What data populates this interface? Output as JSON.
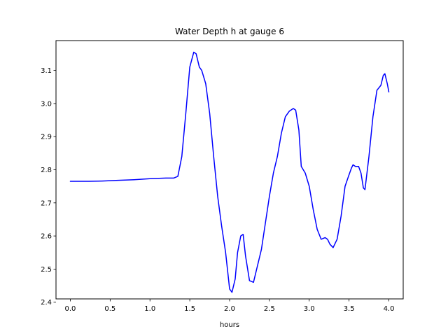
{
  "chart_data": {
    "type": "line",
    "title": "Water Depth h at gauge 6",
    "xlabel": "hours",
    "ylabel": "",
    "xlim": [
      -0.18,
      4.18
    ],
    "ylim": [
      2.41,
      3.19
    ],
    "xticks": [
      0.0,
      0.5,
      1.0,
      1.5,
      2.0,
      2.5,
      3.0,
      3.5,
      4.0
    ],
    "xtick_labels": [
      "0.0",
      "0.5",
      "1.0",
      "1.5",
      "2.0",
      "2.5",
      "3.0",
      "3.5",
      "4.0"
    ],
    "yticks": [
      2.4,
      2.5,
      2.6,
      2.7,
      2.8,
      2.9,
      3.0,
      3.1
    ],
    "ytick_labels": [
      "2.4",
      "2.5",
      "2.6",
      "2.7",
      "2.8",
      "2.9",
      "3.0",
      "3.1"
    ],
    "grid": false,
    "series": [
      {
        "color": "#0000ff",
        "x": [
          0.0,
          0.2,
          0.4,
          0.6,
          0.8,
          1.0,
          1.2,
          1.3,
          1.35,
          1.4,
          1.45,
          1.5,
          1.55,
          1.58,
          1.62,
          1.65,
          1.7,
          1.75,
          1.8,
          1.85,
          1.9,
          1.95,
          2.0,
          2.03,
          2.07,
          2.1,
          2.14,
          2.17,
          2.2,
          2.25,
          2.3,
          2.35,
          2.4,
          2.45,
          2.5,
          2.55,
          2.6,
          2.65,
          2.7,
          2.75,
          2.8,
          2.83,
          2.87,
          2.9,
          2.95,
          3.0,
          3.05,
          3.1,
          3.15,
          3.2,
          3.23,
          3.26,
          3.3,
          3.35,
          3.4,
          3.45,
          3.5,
          3.53,
          3.55,
          3.58,
          3.62,
          3.65,
          3.68,
          3.7,
          3.75,
          3.8,
          3.85,
          3.9,
          3.93,
          3.95,
          3.98,
          4.0
        ],
        "y": [
          2.765,
          2.765,
          2.766,
          2.768,
          2.77,
          2.773,
          2.775,
          2.775,
          2.78,
          2.84,
          2.97,
          3.11,
          3.155,
          3.15,
          3.11,
          3.1,
          3.06,
          2.97,
          2.84,
          2.72,
          2.63,
          2.55,
          2.44,
          2.43,
          2.47,
          2.55,
          2.6,
          2.605,
          2.54,
          2.465,
          2.46,
          2.51,
          2.56,
          2.64,
          2.72,
          2.79,
          2.84,
          2.91,
          2.96,
          2.977,
          2.985,
          2.98,
          2.92,
          2.81,
          2.79,
          2.75,
          2.68,
          2.62,
          2.59,
          2.595,
          2.59,
          2.575,
          2.565,
          2.59,
          2.66,
          2.75,
          2.785,
          2.805,
          2.815,
          2.81,
          2.81,
          2.79,
          2.745,
          2.74,
          2.84,
          2.96,
          3.04,
          3.055,
          3.085,
          3.09,
          3.06,
          3.035
        ]
      }
    ]
  }
}
